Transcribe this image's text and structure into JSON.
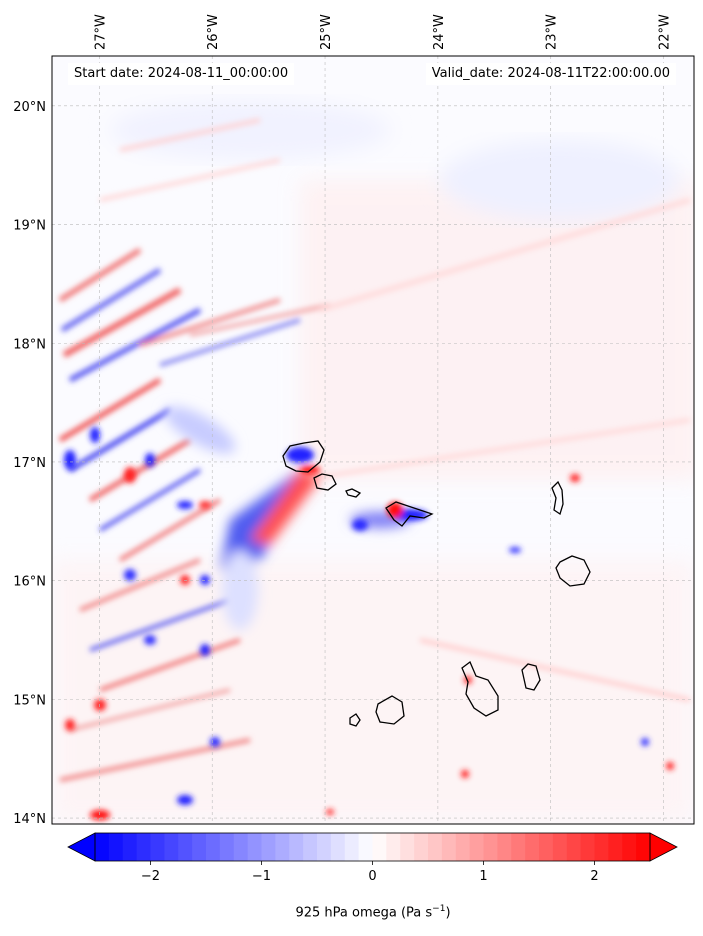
{
  "header": {
    "start_date": "Start date: 2024-08-11_00:00:00",
    "valid_date": "Valid_date: 2024-08-11T22:00:00.00"
  },
  "map": {
    "lon_labels": [
      "27°W",
      "26°W",
      "25°W",
      "24°W",
      "23°W",
      "22°W"
    ],
    "lat_labels": [
      "20°N",
      "19°N",
      "18°N",
      "17°N",
      "16°N",
      "15°N",
      "14°N"
    ],
    "extent": {
      "lon": [
        -27.42,
        -21.73
      ],
      "lat": [
        13.95,
        20.42
      ]
    },
    "gridlines": true,
    "field": "925 hPa omega",
    "colormap": "bwr",
    "colors": {
      "negative": "#0000ff",
      "neutral": "#ffffff",
      "positive": "#ff0000",
      "coast": "#000000"
    }
  },
  "colorbar": {
    "label_prefix": "925 hPa omega (Pa s",
    "label_exp": "−1",
    "label_suffix": ")",
    "ticks": [
      "−2",
      "−1",
      "0",
      "1",
      "2"
    ],
    "tick_values": [
      -2,
      -1,
      0,
      1,
      2
    ],
    "range": [
      -2.5,
      2.5
    ],
    "extend": "both"
  }
}
